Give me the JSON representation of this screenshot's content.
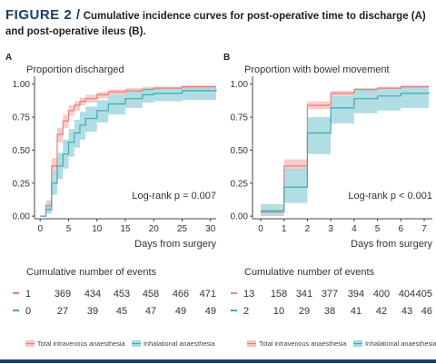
{
  "caption": {
    "label": "FIGURE 2 /",
    "text": "Cumulative incidence curves for post-operative time to discharge (A) and post-operative ileus (B)."
  },
  "colors": {
    "total_intravenous": "#e8807b",
    "total_intravenous_band": "#f5c4c0",
    "inhalational": "#3ba9b6",
    "inhalational_band": "#a3d8df",
    "figure_label": "#17406d"
  },
  "chart_data": [
    {
      "panel": "A",
      "type": "line",
      "step": true,
      "title": "Proportion discharged",
      "xlabel": "Days from surgery",
      "ylabel": "",
      "xlim": [
        -1,
        31
      ],
      "ylim": [
        -0.02,
        1.06
      ],
      "xticks": [
        0,
        5,
        10,
        15,
        20,
        25,
        30
      ],
      "yticks": [
        0.0,
        0.25,
        0.5,
        0.75,
        1.0
      ],
      "ytick_labels": [
        "0.00",
        "0.25",
        "0.50",
        "0.75",
        "1.00"
      ],
      "annotation": "Log-rank p = 0.007",
      "series": [
        {
          "name": "Total intravenous anaesthesia",
          "color_key": "total_intravenous",
          "x": [
            0,
            1,
            2,
            3,
            4,
            5,
            6,
            7,
            8,
            10,
            12,
            15,
            18,
            20,
            25,
            31
          ],
          "y": [
            0.0,
            0.08,
            0.38,
            0.62,
            0.72,
            0.8,
            0.84,
            0.87,
            0.89,
            0.92,
            0.94,
            0.95,
            0.96,
            0.97,
            0.98,
            0.98
          ],
          "lower": [
            0.0,
            0.04,
            0.32,
            0.56,
            0.67,
            0.76,
            0.8,
            0.84,
            0.86,
            0.89,
            0.92,
            0.93,
            0.94,
            0.95,
            0.96,
            0.96
          ],
          "upper": [
            0.0,
            0.12,
            0.44,
            0.67,
            0.77,
            0.84,
            0.87,
            0.9,
            0.92,
            0.94,
            0.96,
            0.97,
            0.98,
            0.98,
            0.99,
            0.99
          ]
        },
        {
          "name": "Inhalational anaesthesia",
          "color_key": "inhalational",
          "x": [
            0,
            1,
            2,
            3,
            4,
            5,
            6,
            7,
            8,
            10,
            12,
            15,
            18,
            20,
            25,
            31
          ],
          "y": [
            0.0,
            0.05,
            0.25,
            0.38,
            0.47,
            0.56,
            0.63,
            0.69,
            0.74,
            0.8,
            0.85,
            0.89,
            0.92,
            0.93,
            0.95,
            0.96
          ],
          "lower": [
            0.0,
            0.02,
            0.16,
            0.28,
            0.36,
            0.45,
            0.52,
            0.58,
            0.64,
            0.71,
            0.77,
            0.82,
            0.86,
            0.87,
            0.88,
            0.89
          ],
          "upper": [
            0.0,
            0.09,
            0.34,
            0.48,
            0.58,
            0.66,
            0.73,
            0.79,
            0.83,
            0.88,
            0.92,
            0.95,
            0.97,
            0.98,
            0.99,
            0.99
          ]
        }
      ],
      "events_table": {
        "title": "Cumulative number of events",
        "rows": [
          {
            "color_key": "total_intravenous",
            "values": [
              "1",
              "369",
              "434",
              "453",
              "458",
              "466",
              "471"
            ]
          },
          {
            "color_key": "inhalational",
            "values": [
              "0",
              "27",
              "39",
              "45",
              "47",
              "49",
              "49"
            ]
          }
        ]
      },
      "legend": [
        "Total intravenous anaesthesia",
        "Inhalational anaesthesia"
      ],
      "legend_position": "bottom"
    },
    {
      "panel": "B",
      "type": "line",
      "step": true,
      "title": "Proportion with bowel movement",
      "xlabel": "Days from surgery",
      "ylabel": "",
      "xlim": [
        -0.35,
        7.35
      ],
      "ylim": [
        -0.02,
        1.06
      ],
      "xticks": [
        0,
        1,
        2,
        3,
        4,
        5,
        6,
        7
      ],
      "yticks": [
        0.0,
        0.25,
        0.5,
        0.75,
        1.0
      ],
      "ytick_labels": [
        "0.00",
        "0.25",
        "0.50",
        "0.75",
        "1.00"
      ],
      "annotation": "Log-rank p < 0.001",
      "series": [
        {
          "name": "Total intravenous anaesthesia",
          "color_key": "total_intravenous",
          "x": [
            0,
            1,
            2,
            3,
            4,
            5,
            6,
            7.2
          ],
          "y": [
            0.03,
            0.38,
            0.84,
            0.93,
            0.96,
            0.97,
            0.98,
            0.98
          ],
          "lower": [
            0.02,
            0.34,
            0.81,
            0.91,
            0.94,
            0.96,
            0.97,
            0.97
          ],
          "upper": [
            0.05,
            0.43,
            0.87,
            0.95,
            0.97,
            0.98,
            0.99,
            0.99
          ]
        },
        {
          "name": "Inhalational anaesthesia",
          "color_key": "inhalational",
          "x": [
            0,
            1,
            2,
            3,
            4,
            5,
            6,
            7.2
          ],
          "y": [
            0.04,
            0.22,
            0.63,
            0.82,
            0.89,
            0.91,
            0.93,
            0.94
          ],
          "lower": [
            0.0,
            0.1,
            0.47,
            0.7,
            0.78,
            0.8,
            0.82,
            0.81
          ],
          "upper": [
            0.09,
            0.36,
            0.75,
            0.91,
            0.96,
            0.97,
            0.99,
            0.99
          ]
        }
      ],
      "events_table": {
        "title": "Cumulative number of events",
        "rows": [
          {
            "color_key": "total_intravenous",
            "values": [
              "13",
              "158",
              "341",
              "377",
              "394",
              "400",
              "404",
              "405"
            ]
          },
          {
            "color_key": "inhalational",
            "values": [
              "2",
              "10",
              "29",
              "38",
              "41",
              "42",
              "43",
              "46"
            ]
          }
        ]
      },
      "legend": [
        "Total intravenous anaesthesia",
        "Inhalational anaesthesia"
      ],
      "legend_position": "bottom"
    }
  ]
}
